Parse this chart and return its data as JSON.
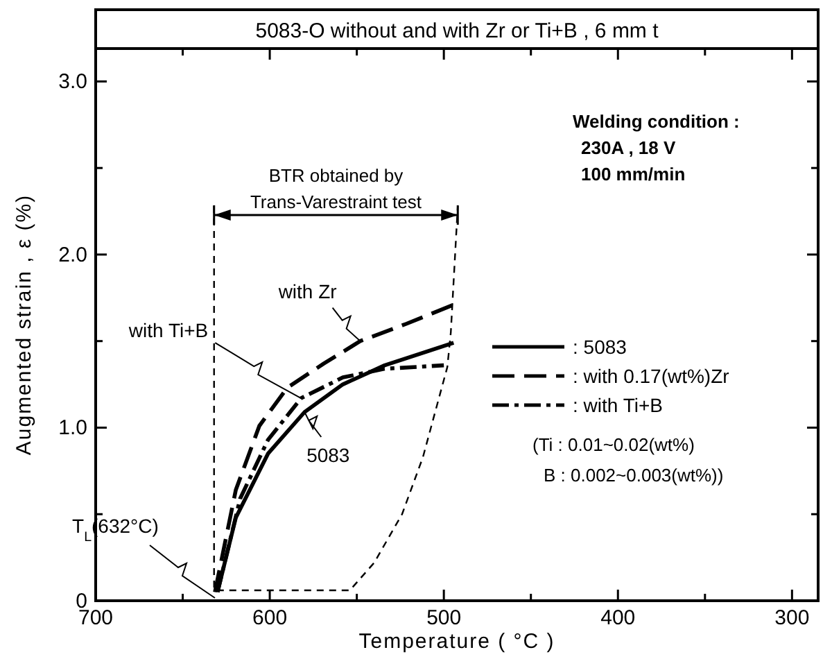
{
  "chart_data": {
    "type": "line",
    "title": "5083-O without and with Zr or Ti+B , 6 mm t",
    "xlabel": "Temperature ( °C )",
    "ylabel": "Augmented strain , ε (%)",
    "xlim": [
      700,
      285
    ],
    "xticks": [
      700,
      {
        "value": 650,
        "label": null
      },
      600,
      {
        "value": 550,
        "label": null
      },
      500,
      {
        "value": 450,
        "label": null
      },
      400,
      {
        "value": 350,
        "label": null
      },
      300
    ],
    "ylim": [
      0,
      3.19
    ],
    "yticks": [
      0,
      {
        "value": 0.5,
        "label": null
      },
      {
        "value": 1,
        "label": "1.0"
      },
      {
        "value": 1.5,
        "label": null
      },
      {
        "value": 2,
        "label": "2.0"
      },
      {
        "value": 2.5,
        "label": null
      },
      {
        "value": 3,
        "label": "3.0"
      }
    ],
    "grid": false,
    "legend": "right",
    "marker": "none",
    "series": [
      {
        "name": ": 5083",
        "color": "#000000",
        "line_style": "solid",
        "x": [
          630,
          619.5,
          601,
          580,
          558,
          534,
          494.4
        ],
        "values": [
          0.05,
          0.48,
          0.85,
          1.09,
          1.25,
          1.36,
          1.49
        ]
      },
      {
        "name": ": with 0.17(wt%)Zr",
        "color": "#000000",
        "line_style": "dashed",
        "x": [
          631.5,
          619.5,
          606,
          590,
          569,
          548,
          521.5,
          494.4
        ],
        "values": [
          0.05,
          0.64,
          1.01,
          1.23,
          1.37,
          1.5,
          1.6,
          1.71
        ]
      },
      {
        "name": ": with Ti+B",
        "color": "#000000",
        "line_style": "dashdot",
        "x": [
          630,
          617,
          601,
          582,
          558,
          534,
          500
        ],
        "values": [
          0.05,
          0.59,
          0.93,
          1.17,
          1.29,
          1.34,
          1.36
        ]
      },
      {
        "color": "#000000",
        "line_style": "dotted",
        "x": [
          632,
          632,
          560,
          554,
          540,
          524,
          512,
          498,
          496,
          492
        ],
        "values": [
          2.28,
          0.06,
          0.06,
          0.06,
          0.22,
          0.5,
          0.83,
          1.35,
          1.55,
          2.28
        ]
      }
    ],
    "annotations": [
      "BTR obtained by\nTrans-Varestraint test",
      "Welding condition :\n230A , 18 V\n100 mm/min",
      "(Ti : 0.01~0.02(wt%)\nB : 0.002~0.003(wt%))",
      {
        "text": "with Zr",
        "x": 548,
        "y": 1.5
      },
      {
        "text": "with Ti+B",
        "x": 582,
        "y": 1.17
      },
      {
        "text": "5083",
        "x": 580,
        "y": 1.09
      },
      "T$_{L}$(632°C)"
    ]
  }
}
